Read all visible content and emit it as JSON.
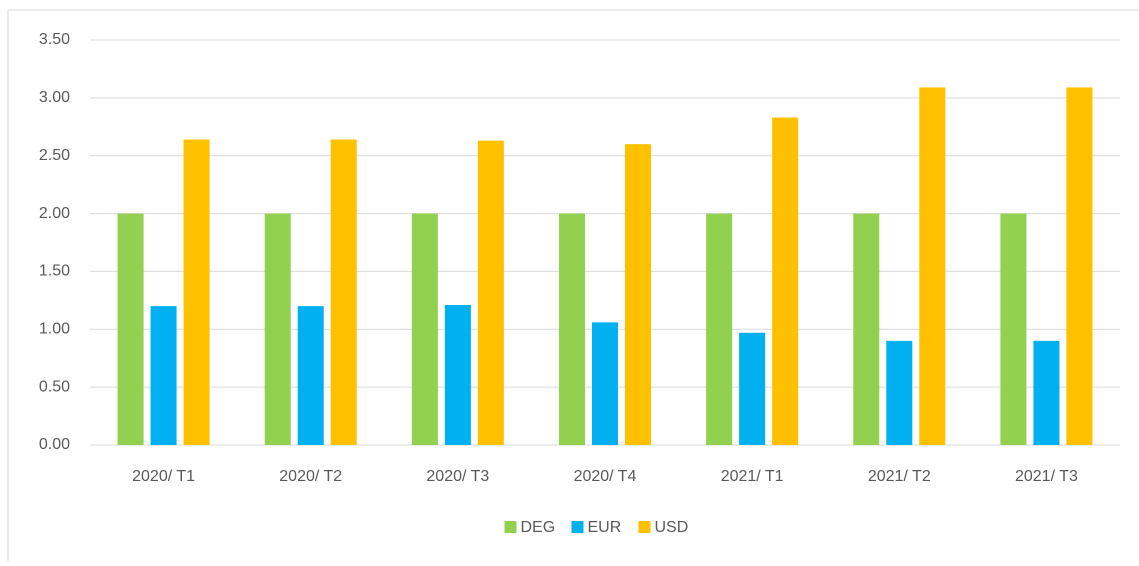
{
  "chart_data": {
    "type": "bar",
    "categories": [
      "2020/ T1",
      "2020/ T2",
      "2020/ T3",
      "2020/ T4",
      "2021/ T1",
      "2021/ T2",
      "2021/ T3"
    ],
    "series": [
      {
        "name": "DEG",
        "color": "#92d050",
        "values": [
          2,
          2,
          2,
          2,
          2,
          2,
          2
        ]
      },
      {
        "name": "EUR",
        "color": "#00b0f0",
        "values": [
          1.2,
          1.2,
          1.21,
          1.06,
          0.97,
          0.9,
          0.9
        ]
      },
      {
        "name": "USD",
        "color": "#ffc000",
        "values": [
          2.64,
          2.64,
          2.63,
          2.6,
          2.83,
          3.09,
          3.09
        ]
      }
    ],
    "ylim": [
      0,
      3.5
    ],
    "yticks": [
      {
        "value": 0,
        "label": "0.00"
      },
      {
        "value": 0.5,
        "label": "0.50"
      },
      {
        "value": 1,
        "label": "1.00"
      },
      {
        "value": 1.5,
        "label": "1.50"
      },
      {
        "value": 2,
        "label": "2.00"
      },
      {
        "value": 2.5,
        "label": "2.50"
      },
      {
        "value": 3,
        "label": "3.00"
      },
      {
        "value": 3.5,
        "label": "3.50"
      }
    ],
    "grid": true,
    "legend": "bottom"
  }
}
